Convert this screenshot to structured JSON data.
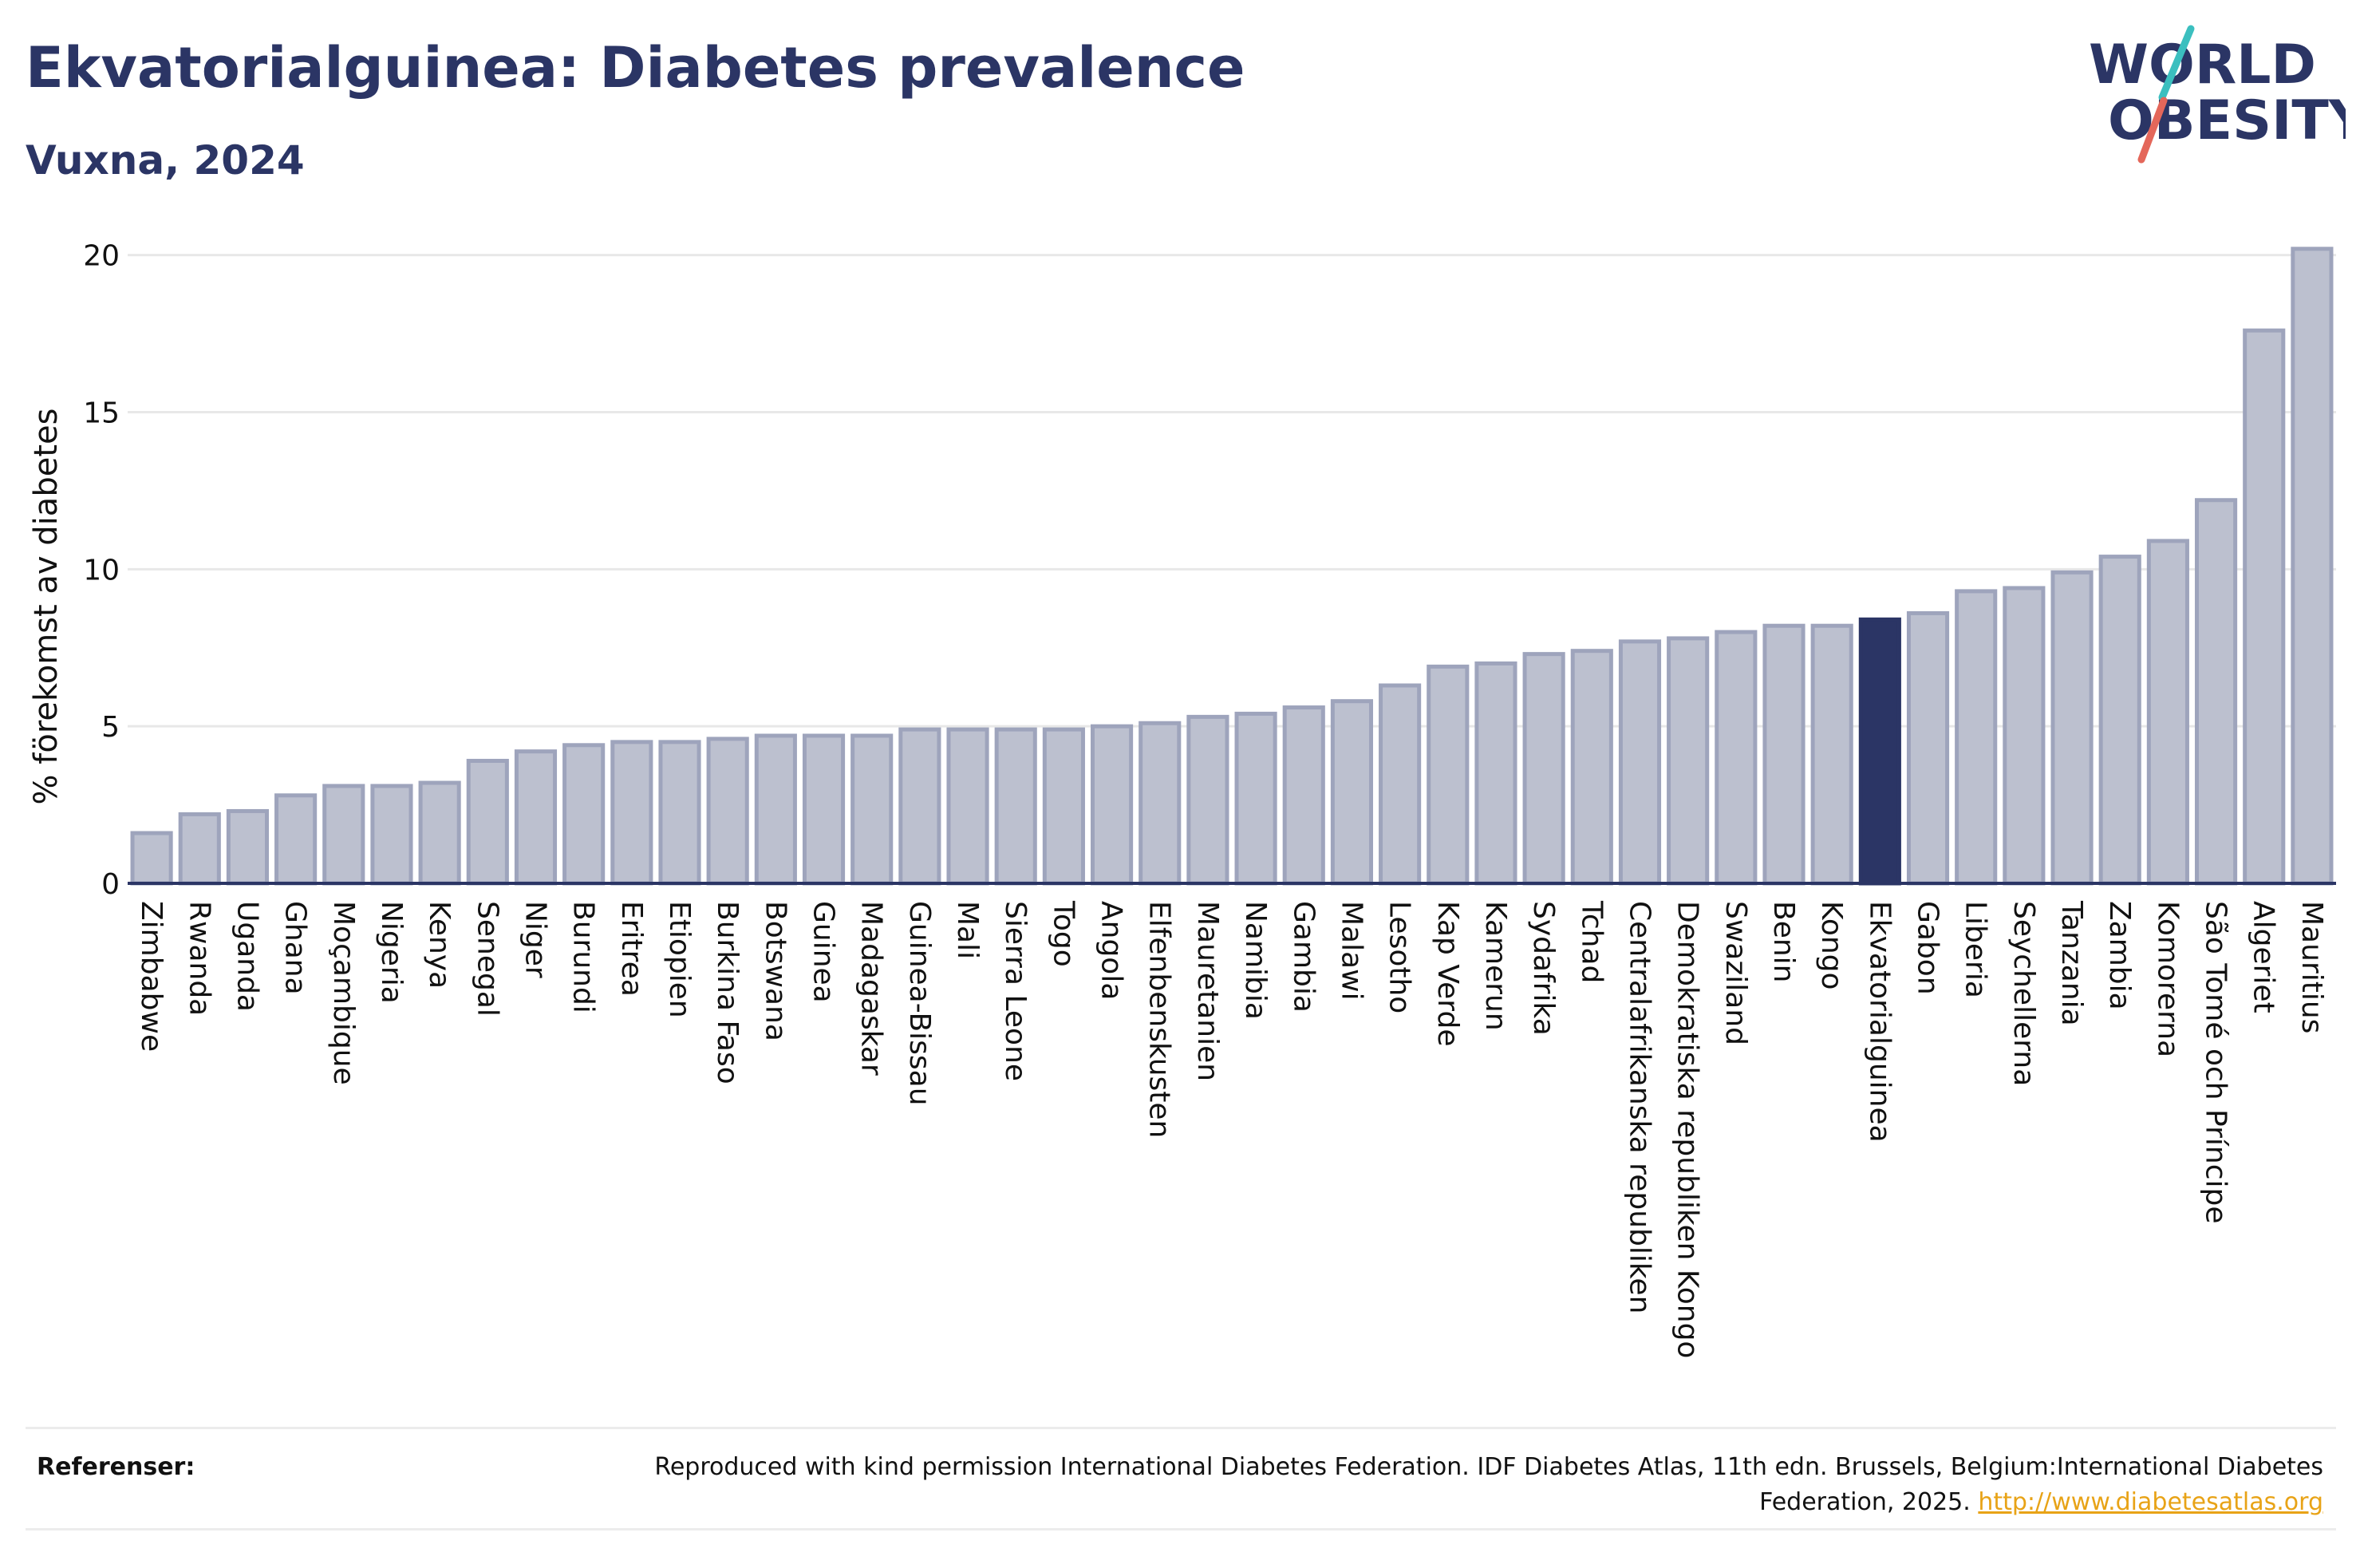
{
  "header": {
    "title": "Ekvatorialguinea: Diabetes prevalence",
    "subtitle": "Vuxna, 2024"
  },
  "logo": {
    "line1": "WORLD",
    "line2": "OBESITY",
    "colors": {
      "text": "#2b3565",
      "slash_teal": "#3bbfbf",
      "slash_red": "#e4675a"
    }
  },
  "chart_data": {
    "type": "bar",
    "title": "Ekvatorialguinea: Diabetes prevalence",
    "subtitle": "Vuxna, 2024",
    "ylabel": "% förekomst av diabetes",
    "xlabel": "",
    "ylim": [
      0,
      20.5
    ],
    "yticks": [
      0,
      5,
      10,
      15,
      20
    ],
    "grid": true,
    "highlight": "Ekvatorialguinea",
    "colors": {
      "bar": "#bcc0cf",
      "bar_border": "#9ea4bc",
      "highlight": "#2b3565",
      "grid": "#e8e8e8",
      "axis": "#2b3565"
    },
    "categories": [
      "Zimbabwe",
      "Rwanda",
      "Uganda",
      "Ghana",
      "Moçambique",
      "Nigeria",
      "Kenya",
      "Senegal",
      "Niger",
      "Burundi",
      "Eritrea",
      "Etiopien",
      "Burkina Faso",
      "Botswana",
      "Guinea",
      "Madagaskar",
      "Guinea-Bissau",
      "Mali",
      "Sierra Leone",
      "Togo",
      "Angola",
      "Elfenbenskusten",
      "Mauretanien",
      "Namibia",
      "Gambia",
      "Malawi",
      "Lesotho",
      "Kap Verde",
      "Kamerun",
      "Sydafrika",
      "Tchad",
      "Centralafrikanska republiken",
      "Demokratiska republiken Kongo",
      "Swaziland",
      "Benin",
      "Kongo",
      "Ekvatorialguinea",
      "Gabon",
      "Liberia",
      "Seychellerna",
      "Tanzania",
      "Zambia",
      "Komorerna",
      "São Tomé och Príncipe",
      "Algeriet",
      "Mauritius"
    ],
    "values": [
      1.6,
      2.2,
      2.3,
      2.8,
      3.1,
      3.1,
      3.2,
      3.9,
      4.2,
      4.4,
      4.5,
      4.5,
      4.6,
      4.7,
      4.7,
      4.7,
      4.9,
      4.9,
      4.9,
      4.9,
      5.0,
      5.1,
      5.3,
      5.4,
      5.6,
      5.8,
      6.3,
      6.9,
      7.0,
      7.3,
      7.4,
      7.7,
      7.8,
      8.0,
      8.2,
      8.2,
      8.4,
      8.6,
      9.3,
      9.4,
      9.9,
      10.4,
      10.9,
      12.2,
      17.6,
      20.2
    ]
  },
  "footer": {
    "label": "Referenser:",
    "text": "Reproduced with kind permission International Diabetes Federation. IDF Diabetes Atlas, 11th edn. Brussels, Belgium:International Diabetes Federation, 2025.",
    "link": "http://www.diabetesatlas.org"
  }
}
